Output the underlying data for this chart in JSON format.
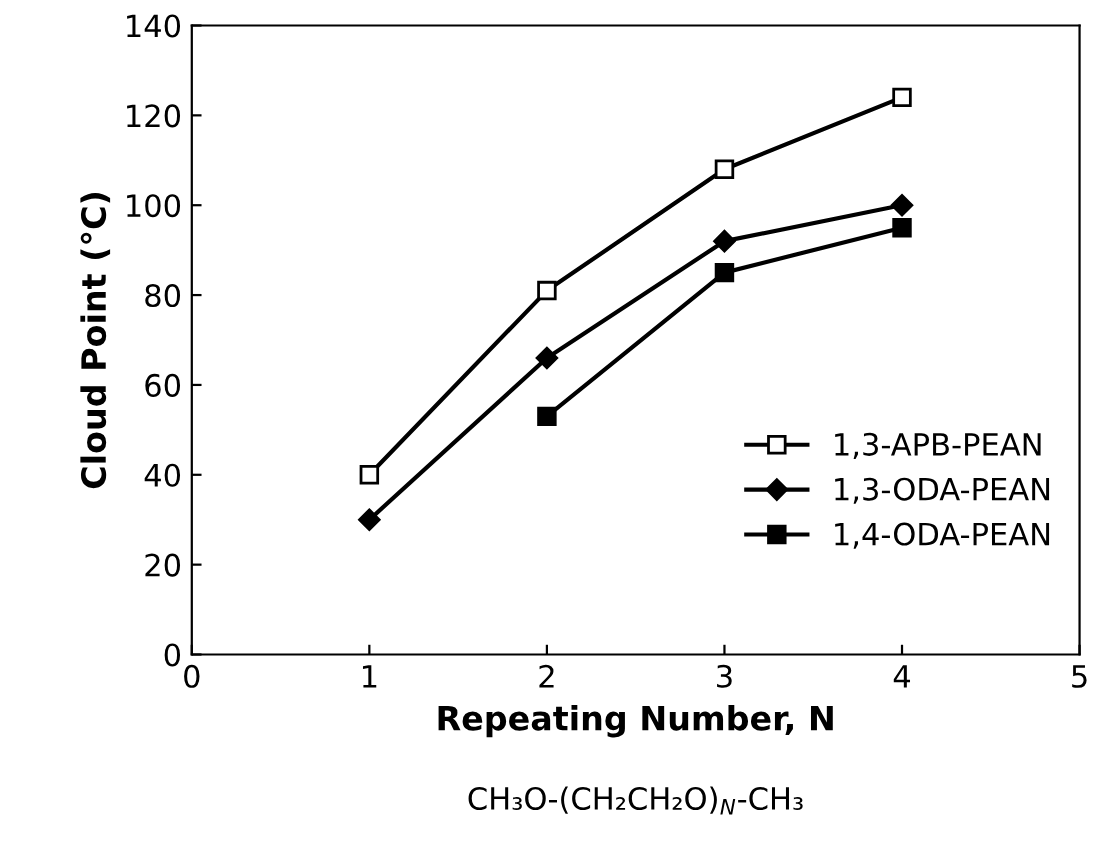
{
  "chart_data": {
    "type": "line",
    "xlabel": "Repeating Number, N",
    "ylabel": "Cloud Point (°C)",
    "xlim": [
      0,
      5
    ],
    "xticks": [
      0,
      1,
      2,
      3,
      4,
      5
    ],
    "ylim": [
      0,
      140
    ],
    "yticks": [
      0,
      20,
      40,
      60,
      80,
      100,
      120,
      140
    ],
    "grid": false,
    "legend": "bottom right",
    "line_style": "solid",
    "series": [
      {
        "name": "1,3-APB-PEAN",
        "color": "#000000",
        "marker": "square",
        "x": [
          1,
          2,
          3,
          4
        ],
        "values": [
          40,
          81,
          108,
          124
        ]
      },
      {
        "name": "1,3-ODA-PEAN",
        "color": "#000000",
        "marker": "diamond",
        "x": [
          1,
          2,
          3,
          4
        ],
        "values": [
          30,
          66,
          92,
          100
        ]
      },
      {
        "name": "1,4-ODA-PEAN",
        "color": "#000000",
        "marker": "square",
        "x": [
          2,
          3,
          4
        ],
        "values": [
          53,
          85,
          95
        ]
      }
    ],
    "annotations": [
      "CH₃O-(CH₂CH₂O)$_{N}$-CH₃"
    ]
  }
}
